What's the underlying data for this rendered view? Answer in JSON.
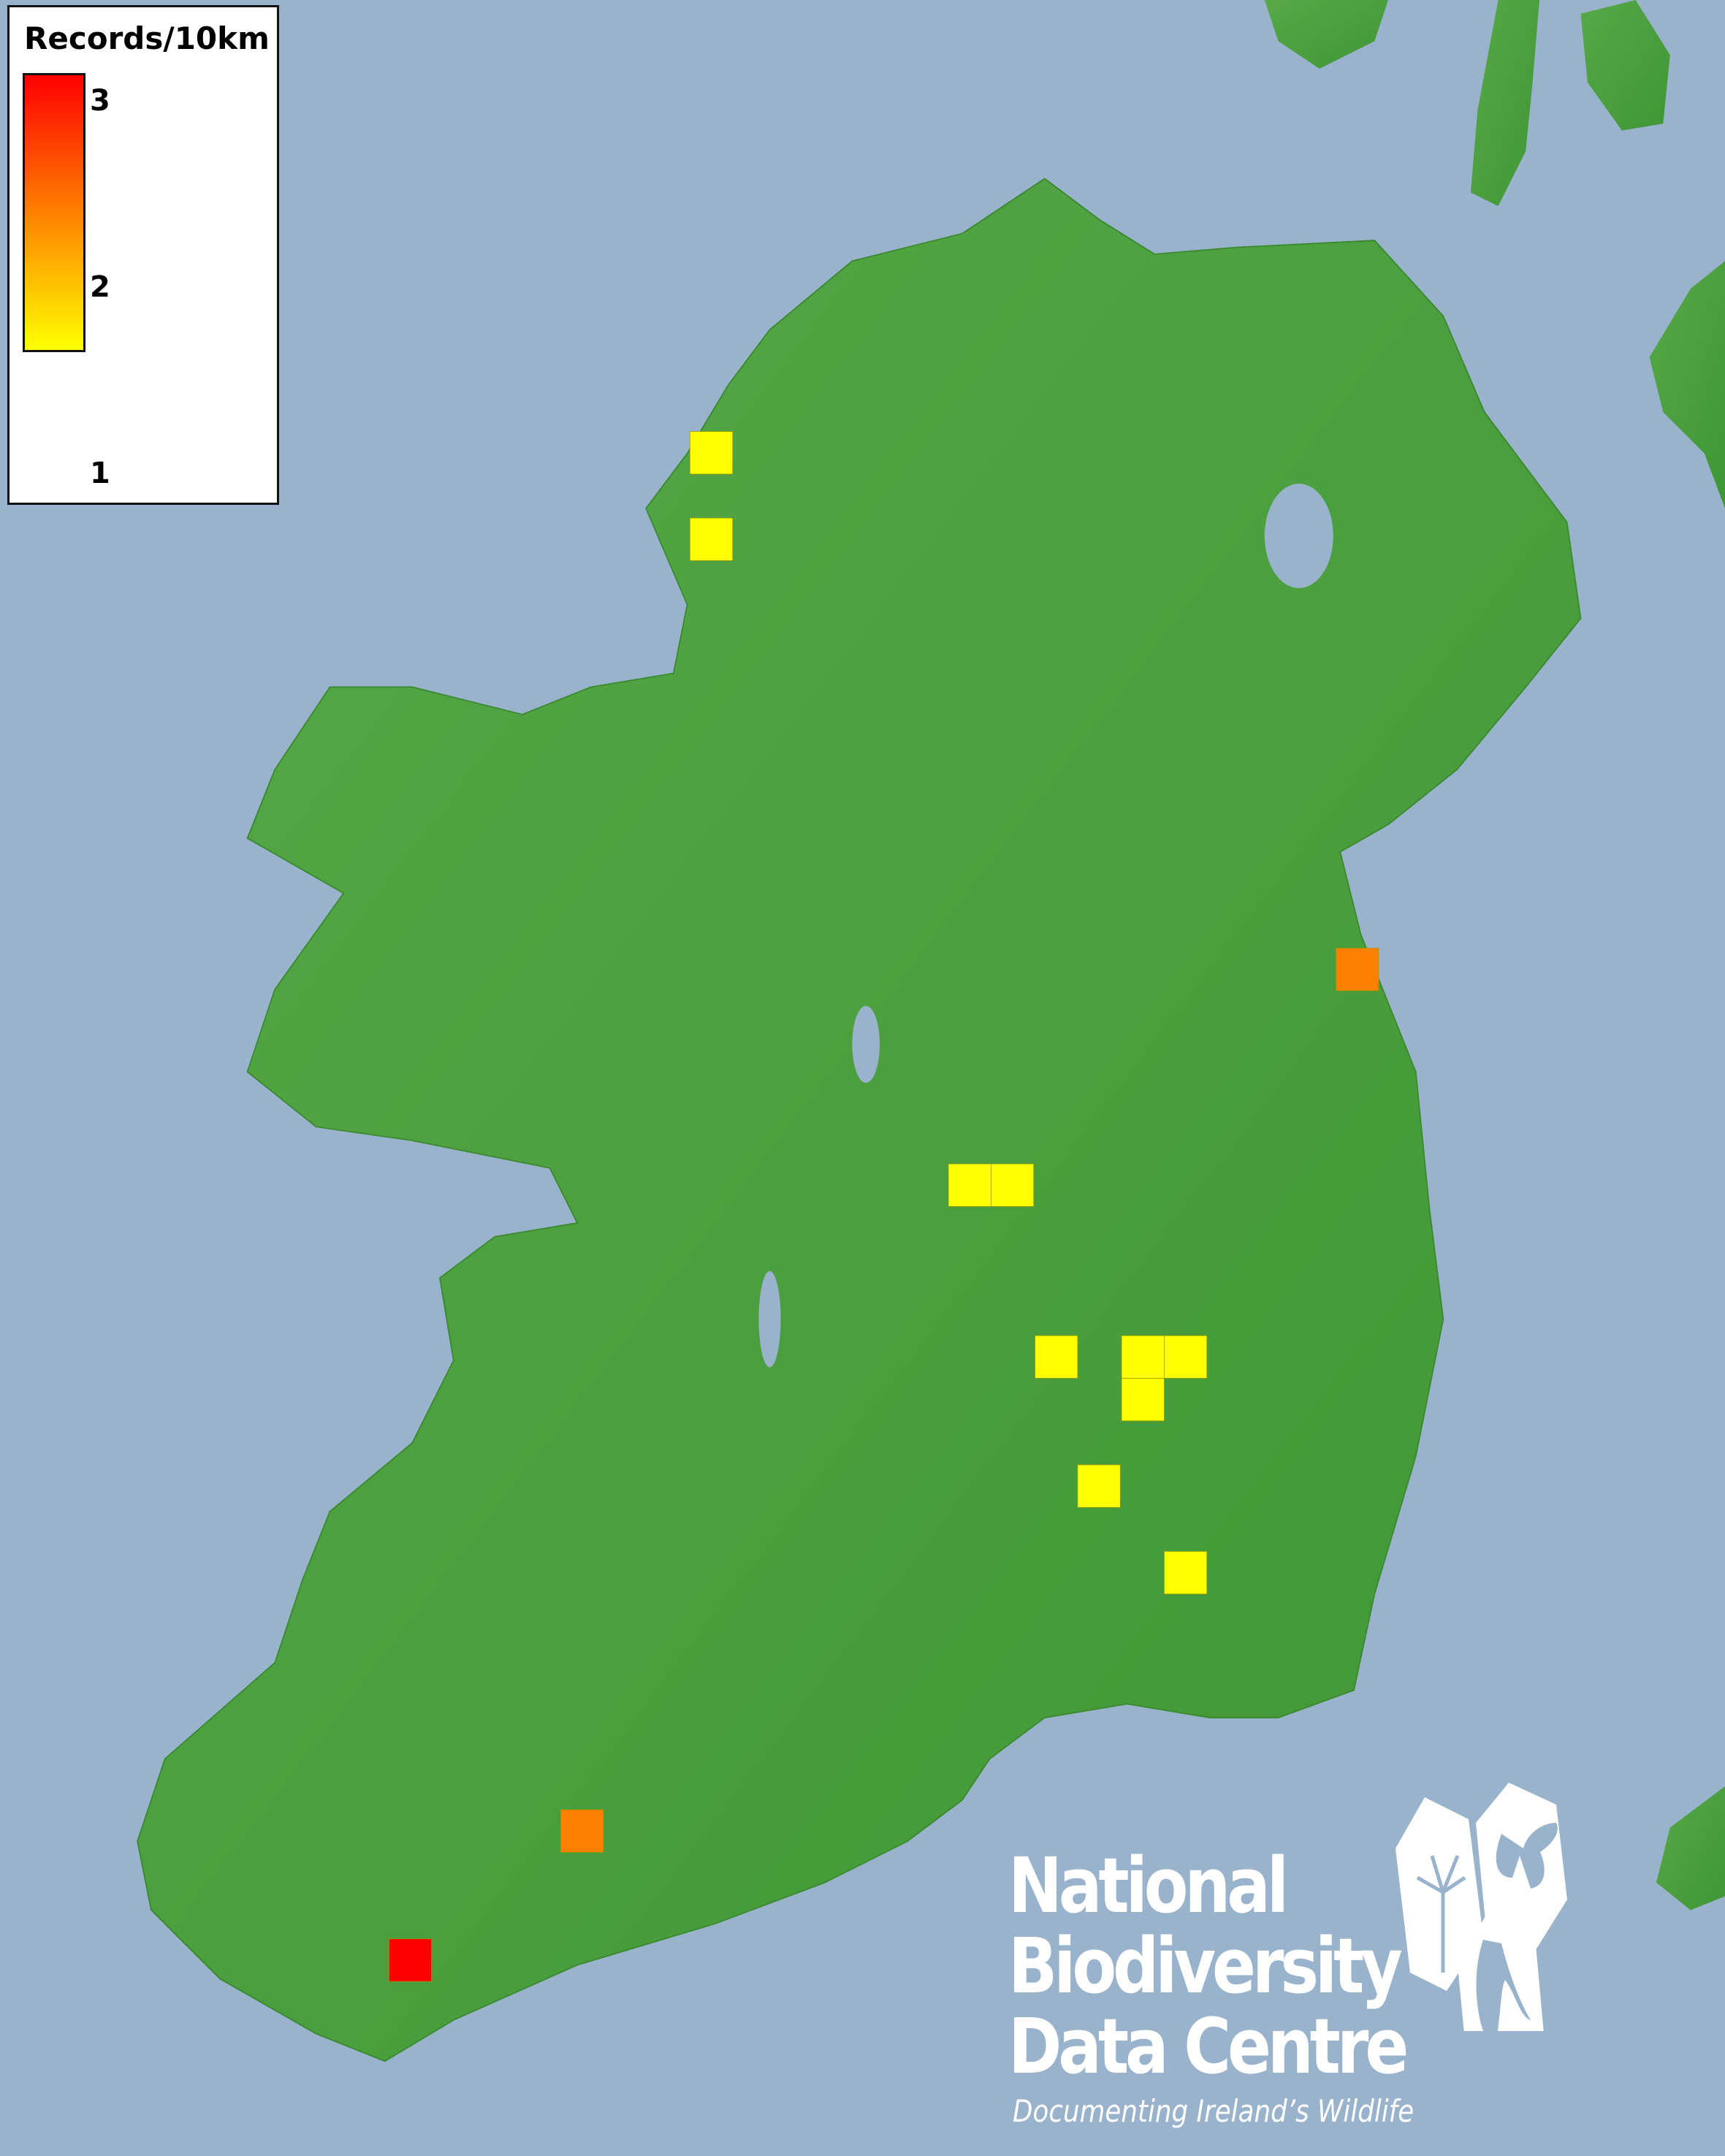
{
  "legend": {
    "title": "Records/10km",
    "ticks": [
      "3",
      "2",
      "1"
    ],
    "color_scale": {
      "min_value": 1,
      "max_value": 3,
      "min_color": "#ffff00",
      "mid_color": "#ff8000",
      "max_color": "#ff0000"
    }
  },
  "map": {
    "sea_color": "#9ab3cc",
    "land_color": "#4a9e3c",
    "records": [
      1,
      1,
      2,
      1,
      1,
      1,
      1,
      1,
      1,
      1,
      1,
      2,
      3
    ]
  },
  "logo": {
    "line1": "National",
    "line2": "Biodiversity",
    "line3": "Data Centre",
    "tagline": "Documenting Ireland’s Wildlife",
    "icons": [
      "tree-icon",
      "butterfly-icon",
      "seahorse-icon"
    ]
  }
}
